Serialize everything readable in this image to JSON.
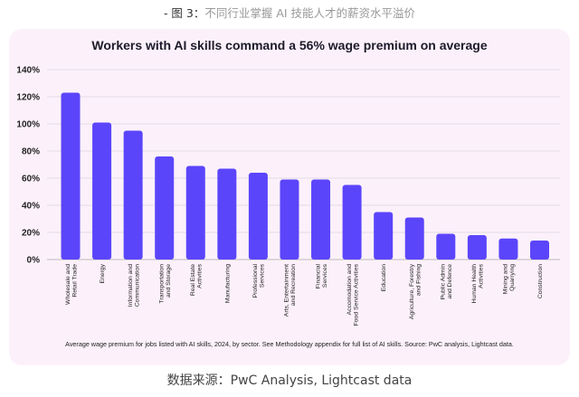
{
  "header": {
    "caption_prefix": "- 图 3：",
    "caption_text": "不同行业掌握 AI 技能人才的薪资水平溢价"
  },
  "footer": {
    "source": "数据来源：PwC Analysis, Lightcast data"
  },
  "colors": {
    "bar": "#5b45fb",
    "card": "#fcf1fa",
    "grid": "#e2dce6"
  },
  "chart_data": {
    "type": "bar",
    "title": "Workers with AI skills command a 56% wage premium on average",
    "note": "Average wage premium for jobs listed with AI skills, 2024, by sector. See Methodology appendix for full list of AI skills. Source: PwC analysis, Lightcast data.",
    "xlabel": "",
    "ylabel": "",
    "ylim": [
      0,
      140
    ],
    "yticks": [
      "0%",
      "20%",
      "40%",
      "60%",
      "80%",
      "100%",
      "120%",
      "140%"
    ],
    "ytick_values": [
      0,
      20,
      40,
      60,
      80,
      100,
      120,
      140
    ],
    "grid": true,
    "categories": [
      [
        "Wholesale and",
        "Retail Trade"
      ],
      [
        "Energy"
      ],
      [
        "Information and",
        "Communication"
      ],
      [
        "Transportation",
        "and Storage"
      ],
      [
        "Real Estate",
        "Activities"
      ],
      [
        "Manufacturing"
      ],
      [
        "Professional",
        "Services"
      ],
      [
        "Arts, Entertainment",
        "and Recreation"
      ],
      [
        "Financial",
        "Services"
      ],
      [
        "Accomodation and",
        "Food Service Activities"
      ],
      [
        "Education"
      ],
      [
        "Agriculture, Forestry",
        "and Fishing"
      ],
      [
        "Public Admin",
        "and Defence"
      ],
      [
        "Human Health",
        "Activities"
      ],
      [
        "Mining and",
        "Quarrying"
      ],
      [
        "Construction"
      ]
    ],
    "values": [
      123,
      101,
      95,
      76,
      69,
      67,
      64,
      59,
      59,
      55,
      35,
      31,
      19,
      18,
      15.5,
      14
    ]
  }
}
